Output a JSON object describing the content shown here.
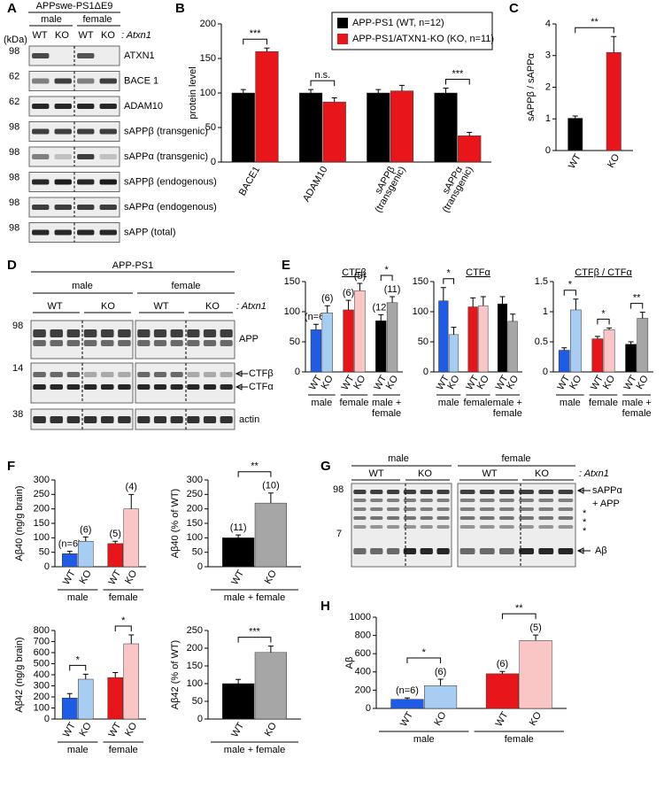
{
  "panel_labels": [
    "A",
    "B",
    "C",
    "D",
    "E",
    "F",
    "G",
    "H"
  ],
  "blots": {
    "A": {
      "header": "APPswe-PS1ΔE9",
      "sexes": [
        "male",
        "female"
      ],
      "genotypes": [
        "WT",
        "KO",
        "WT",
        "KO"
      ],
      "gene": ": Atxn1",
      "unit": "(kDa)",
      "rows": [
        {
          "marker": 98,
          "label": "ATXN1"
        },
        {
          "marker": 62,
          "label": "BACE 1"
        },
        {
          "marker": 62,
          "label": "ADAM10"
        },
        {
          "marker": 98,
          "label": "sAPPβ (transgenic)"
        },
        {
          "marker": 98,
          "label": "sAPPα (transgenic)"
        },
        {
          "marker": 98,
          "label": "sAPPβ (endogenous)"
        },
        {
          "marker": 98,
          "label": "sAPPα (endogenous)"
        },
        {
          "marker": 98,
          "label": "sAPP (total)"
        }
      ]
    },
    "D": {
      "header": "APP-PS1",
      "sexes": [
        "male",
        "female"
      ],
      "genotypes": [
        "WT",
        "KO",
        "WT",
        "KO"
      ],
      "gene": ": Atxn1",
      "rows": [
        {
          "marker": 98,
          "labels": [
            "APP"
          ]
        },
        {
          "marker": 14,
          "labels": [
            "CTFβ",
            "CTFα"
          ]
        },
        {
          "marker": 38,
          "labels": [
            "actin"
          ]
        }
      ]
    },
    "G": {
      "sexes": [
        "male",
        "female"
      ],
      "genotypes": [
        "WT",
        "KO",
        "WT",
        "KO"
      ],
      "gene": ": Atxn1",
      "markers": [
        98,
        7
      ],
      "labels": [
        "sAPPα",
        "+ APP",
        "*",
        "*",
        "*",
        "Aβ"
      ]
    }
  },
  "chart_data": [
    {
      "type": "bar",
      "ylabel": "protein level",
      "ylim": [
        0,
        200
      ],
      "yticks": [
        0,
        50,
        100,
        150,
        200
      ],
      "categories": [
        "BACE1",
        "ADAM10",
        "sAPPβ",
        "sAPPα"
      ],
      "category_notes": [
        null,
        null,
        "(transgenic)",
        "(transgenic)"
      ],
      "series": [
        {
          "name": "APP-PS1 (WT, n=12)",
          "color": "#000000",
          "values": [
            100,
            100,
            100,
            100
          ],
          "errors": [
            5,
            5,
            5,
            7
          ]
        },
        {
          "name": "APP-PS1/ATXN1-KO (KO, n=11)",
          "color": "#e8151b",
          "values": [
            160,
            87,
            103,
            38
          ],
          "errors": [
            5,
            6,
            8,
            5
          ]
        }
      ],
      "significance": [
        "***",
        "n.s.",
        null,
        "***"
      ]
    },
    {
      "type": "bar",
      "ylabel": "sAPPβ / sAPPα",
      "ylim": [
        0,
        4
      ],
      "yticks": [
        0,
        1,
        2,
        3,
        4
      ],
      "categories": [
        "WT",
        "KO"
      ],
      "values": [
        1.02,
        3.1
      ],
      "errors": [
        0.07,
        0.5
      ],
      "colors": [
        "#000000",
        "#e8151b"
      ],
      "significance": [
        "**"
      ]
    },
    {
      "type": "bar",
      "title": "CTFβ",
      "ylim": [
        0,
        150
      ],
      "yticks": [
        0,
        50,
        100,
        150
      ],
      "categories": [
        "WT",
        "KO",
        "WT",
        "KO",
        "WT",
        "KO"
      ],
      "groups": [
        "male",
        "female",
        "male + female"
      ],
      "values": [
        70,
        98,
        103,
        135,
        85,
        115
      ],
      "errors": [
        9,
        12,
        16,
        12,
        10,
        10
      ],
      "colors": [
        "#1f5ce6",
        "#a8cdf2",
        "#e8151b",
        "#f9c5c5",
        "#000000",
        "#a6a6a6"
      ],
      "n_labels": [
        "(n=6)",
        "(6)",
        "(6)",
        "(5)",
        "(12)",
        "(11)"
      ],
      "significance": [
        null,
        null,
        "*"
      ]
    },
    {
      "type": "bar",
      "title": "CTFα",
      "ylim": [
        0,
        150
      ],
      "yticks": [
        0,
        50,
        100,
        150
      ],
      "categories": [
        "WT",
        "KO",
        "WT",
        "KO",
        "WT",
        "KO"
      ],
      "groups": [
        "male",
        "female",
        "male + female"
      ],
      "values": [
        118,
        62,
        108,
        110,
        113,
        84
      ],
      "errors": [
        22,
        12,
        15,
        15,
        12,
        12
      ],
      "colors": [
        "#1f5ce6",
        "#a8cdf2",
        "#e8151b",
        "#f9c5c5",
        "#000000",
        "#a6a6a6"
      ],
      "significance": [
        "*",
        null,
        null
      ]
    },
    {
      "type": "bar",
      "title": "CTFβ / CTFα",
      "ylim": [
        0,
        1.5
      ],
      "yticks": [
        0,
        0.5,
        1,
        1.5
      ],
      "categories": [
        "WT",
        "KO",
        "WT",
        "KO",
        "WT",
        "KO"
      ],
      "groups": [
        "male",
        "female",
        "male + female"
      ],
      "values": [
        0.36,
        1.03,
        0.55,
        0.7,
        0.46,
        0.89
      ],
      "errors": [
        0.04,
        0.18,
        0.04,
        0.03,
        0.04,
        0.1
      ],
      "colors": [
        "#1f5ce6",
        "#a8cdf2",
        "#e8151b",
        "#f9c5c5",
        "#000000",
        "#a6a6a6"
      ],
      "significance": [
        "*",
        "*",
        "**"
      ]
    },
    {
      "type": "bar",
      "ylabel": "Aβ40 (ng/g brain)",
      "ylim": [
        0,
        300
      ],
      "yticks": [
        0,
        50,
        100,
        150,
        200,
        250,
        300
      ],
      "categories": [
        "WT",
        "KO",
        "WT",
        "KO"
      ],
      "groups": [
        "male",
        "female"
      ],
      "values": [
        45,
        88,
        80,
        200
      ],
      "errors": [
        8,
        15,
        8,
        50
      ],
      "colors": [
        "#1f5ce6",
        "#a8cdf2",
        "#e8151b",
        "#f9c5c5"
      ],
      "n_labels": [
        "(n=6)",
        "(6)",
        "(5)",
        "(4)"
      ]
    },
    {
      "type": "bar",
      "ylabel": "Aβ40 (% of WT)",
      "ylim": [
        0,
        300
      ],
      "yticks": [
        0,
        50,
        100,
        150,
        200,
        250,
        300
      ],
      "categories": [
        "WT",
        "KO"
      ],
      "groups": [
        "male + female"
      ],
      "values": [
        100,
        220
      ],
      "errors": [
        10,
        35
      ],
      "colors": [
        "#000000",
        "#a6a6a6"
      ],
      "n_labels": [
        "(11)",
        "(10)"
      ],
      "significance": [
        "**"
      ]
    },
    {
      "type": "bar",
      "ylabel": "Aβ42 (ng/g brain)",
      "ylim": [
        0,
        800
      ],
      "yticks": [
        0,
        100,
        200,
        300,
        400,
        500,
        600,
        700,
        800
      ],
      "categories": [
        "WT",
        "KO",
        "WT",
        "KO"
      ],
      "groups": [
        "male",
        "female"
      ],
      "values": [
        190,
        360,
        375,
        680
      ],
      "errors": [
        40,
        45,
        45,
        80
      ],
      "colors": [
        "#1f5ce6",
        "#a8cdf2",
        "#e8151b",
        "#f9c5c5"
      ],
      "significance": [
        "*",
        "*"
      ]
    },
    {
      "type": "bar",
      "ylabel": "Aβ42 (% of WT)",
      "ylim": [
        0,
        250
      ],
      "yticks": [
        0,
        50,
        100,
        150,
        200,
        250
      ],
      "categories": [
        "WT",
        "KO"
      ],
      "groups": [
        "male + female"
      ],
      "values": [
        100,
        188
      ],
      "errors": [
        12,
        18
      ],
      "colors": [
        "#000000",
        "#a6a6a6"
      ],
      "significance": [
        "***"
      ]
    },
    {
      "type": "bar",
      "ylabel": "Aβ",
      "ylim": [
        0,
        1000
      ],
      "yticks": [
        0,
        200,
        400,
        600,
        800,
        1000
      ],
      "categories": [
        "WT",
        "KO",
        "WT",
        "KO"
      ],
      "groups": [
        "male",
        "female"
      ],
      "values": [
        100,
        250,
        380,
        745
      ],
      "errors": [
        15,
        70,
        25,
        60
      ],
      "colors": [
        "#1f5ce6",
        "#a8cdf2",
        "#e8151b",
        "#f9c5c5"
      ],
      "n_labels": [
        "(n=6)",
        "(6)",
        "(6)",
        "(5)"
      ],
      "significance": [
        "*",
        "**"
      ]
    }
  ]
}
